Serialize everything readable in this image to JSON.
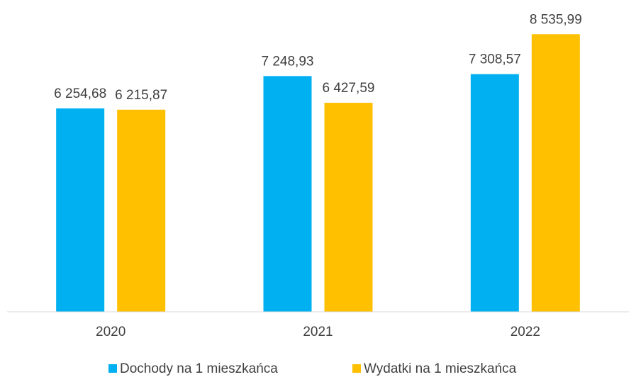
{
  "chart_data": {
    "type": "bar",
    "categories": [
      "2020",
      "2021",
      "2022"
    ],
    "series": [
      {
        "name": "Dochody na 1 mieszkańca",
        "color": "#00b0f0",
        "values": [
          6254.68,
          7248.93,
          7308.57
        ],
        "value_labels": [
          "6 254,68",
          "7 248,93",
          "7 308,57"
        ]
      },
      {
        "name": "Wydatki na 1 mieszkańca",
        "color": "#ffc000",
        "values": [
          6215.87,
          6427.59,
          8535.99
        ],
        "value_labels": [
          "6 215,87",
          "6 427,59",
          "8 535,99"
        ]
      }
    ],
    "ylim": [
      0,
      9000
    ]
  }
}
